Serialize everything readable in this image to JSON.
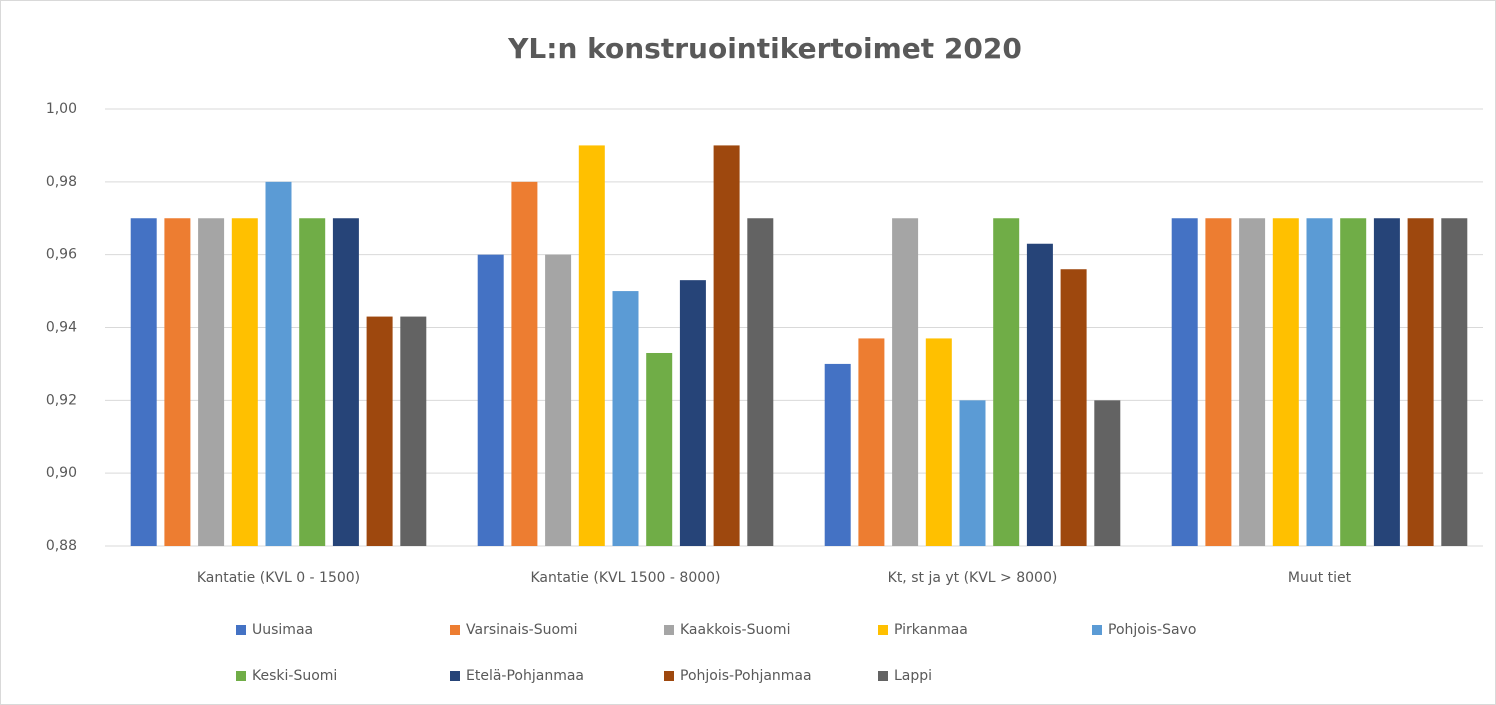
{
  "chart_data": {
    "type": "bar",
    "title": "YL:n konstruointikertoimet  2020",
    "categories": [
      "Kantatie (KVL 0 - 1500)",
      "Kantatie (KVL 1500 - 8000)",
      "Kt, st ja yt (KVL > 8000)",
      "Muut tiet"
    ],
    "series": [
      {
        "name": "Uusimaa",
        "color": "#4472c4",
        "values": [
          0.97,
          0.96,
          0.93,
          0.97
        ]
      },
      {
        "name": "Varsinais-Suomi",
        "color": "#ed7d31",
        "values": [
          0.97,
          0.98,
          0.937,
          0.97
        ]
      },
      {
        "name": "Kaakkois-Suomi",
        "color": "#a5a5a5",
        "values": [
          0.97,
          0.96,
          0.97,
          0.97
        ]
      },
      {
        "name": "Pirkanmaa",
        "color": "#ffc000",
        "values": [
          0.97,
          0.99,
          0.937,
          0.97
        ]
      },
      {
        "name": "Pohjois-Savo",
        "color": "#5b9bd5",
        "values": [
          0.98,
          0.95,
          0.92,
          0.97
        ]
      },
      {
        "name": "Keski-Suomi",
        "color": "#70ad47",
        "values": [
          0.97,
          0.933,
          0.97,
          0.97
        ]
      },
      {
        "name": "Etelä-Pohjanmaa",
        "color": "#264478",
        "values": [
          0.97,
          0.953,
          0.963,
          0.97
        ]
      },
      {
        "name": "Pohjois-Pohjanmaa",
        "color": "#9e480e",
        "values": [
          0.943,
          0.99,
          0.956,
          0.97
        ]
      },
      {
        "name": "Lappi",
        "color": "#636363",
        "values": [
          0.943,
          0.97,
          0.92,
          0.97
        ]
      }
    ],
    "ylim": [
      0.88,
      1.0
    ],
    "yticks": [
      {
        "value": 0.88,
        "label": "0,88"
      },
      {
        "value": 0.9,
        "label": "0,90"
      },
      {
        "value": 0.92,
        "label": "0,92"
      },
      {
        "value": 0.94,
        "label": "0,94"
      },
      {
        "value": 0.96,
        "label": "0,96"
      },
      {
        "value": 0.98,
        "label": "0,98"
      },
      {
        "value": 1.0,
        "label": "1,00"
      }
    ],
    "grid": true,
    "legend": "bottom"
  }
}
